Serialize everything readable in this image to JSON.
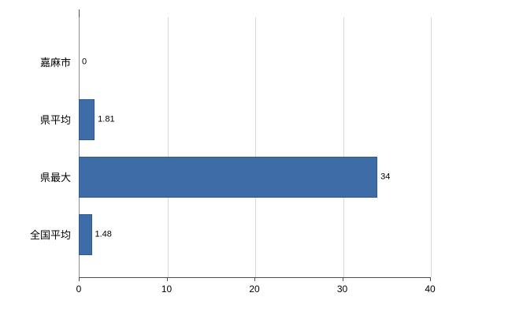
{
  "chart_data": {
    "type": "bar",
    "orientation": "horizontal",
    "title": "",
    "categories": [
      "嘉麻市",
      "県平均",
      "県最大",
      "全国平均"
    ],
    "values": [
      0,
      1.81,
      34,
      1.48
    ],
    "data_labels": [
      "0",
      "1.81",
      "34",
      "1.48"
    ],
    "x_ticks": [
      0,
      10,
      20,
      30,
      40
    ],
    "x_tick_labels": [
      "0",
      "10",
      "20",
      "30",
      "40"
    ],
    "xlim": [
      0,
      40
    ],
    "grid": true,
    "legend": false,
    "colors": {
      "bar_fill": "#3d6ca6",
      "bar_border": "#2d5a94",
      "gridline": "#d9d9d9",
      "axis": "#4d4d4d",
      "background": "#ffffff",
      "text": "#000000"
    }
  }
}
